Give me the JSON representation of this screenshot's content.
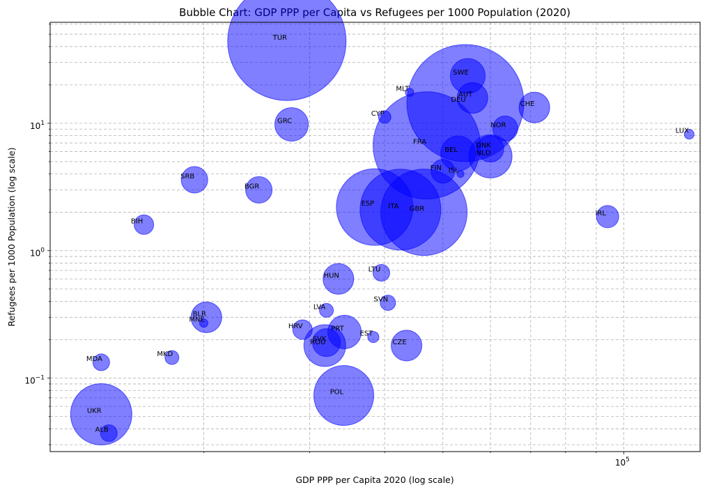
{
  "chart_data": {
    "type": "scatter",
    "variant": "bubble",
    "title": "Bubble Chart: GDP PPP per Capita vs Refugees per 1000 Population (2020)",
    "xlabel": "GDP PPP per Capita 2020 (log scale)",
    "ylabel": "Refugees per 1000 Population (log scale)",
    "xscale": "log",
    "yscale": "log",
    "xlim": [
      11100,
      134000
    ],
    "ylim": [
      0.0265,
      62
    ],
    "xticks": [
      {
        "value": 100000,
        "label": "10^5"
      }
    ],
    "yticks": [
      {
        "value": 0.1,
        "label": "10^-1"
      },
      {
        "value": 1,
        "label": "10^0"
      },
      {
        "value": 10,
        "label": "10^1"
      }
    ],
    "grid": true,
    "bubble_color": "#0000ff",
    "bubble_alpha": 0.5,
    "points": [
      {
        "label": "TUR",
        "x": 27500,
        "y": 44,
        "size": 85
      },
      {
        "label": "SWE",
        "x": 55000,
        "y": 23.5,
        "size": 25
      },
      {
        "label": "MLT",
        "x": 44000,
        "y": 17.5,
        "size": 6
      },
      {
        "label": "AUT",
        "x": 56000,
        "y": 15.8,
        "size": 22
      },
      {
        "label": "DEU",
        "x": 54500,
        "y": 14.4,
        "size": 84
      },
      {
        "label": "CHE",
        "x": 71000,
        "y": 13.3,
        "size": 22
      },
      {
        "label": "CYP",
        "x": 40000,
        "y": 11.2,
        "size": 9
      },
      {
        "label": "GRC",
        "x": 28000,
        "y": 9.8,
        "size": 24
      },
      {
        "label": "NOR",
        "x": 63500,
        "y": 9.1,
        "size": 18
      },
      {
        "label": "LUX",
        "x": 128500,
        "y": 8.2,
        "size": 7
      },
      {
        "label": "FRA",
        "x": 47000,
        "y": 6.7,
        "size": 77
      },
      {
        "label": "DNK",
        "x": 60000,
        "y": 6.3,
        "size": 19
      },
      {
        "label": "BEL",
        "x": 53000,
        "y": 5.8,
        "size": 25
      },
      {
        "label": "NLD",
        "x": 60000,
        "y": 5.5,
        "size": 31
      },
      {
        "label": "FIN",
        "x": 50000,
        "y": 4.2,
        "size": 17
      },
      {
        "label": "ISL",
        "x": 53500,
        "y": 4.0,
        "size": 5
      },
      {
        "label": "SRB",
        "x": 19300,
        "y": 3.6,
        "size": 19
      },
      {
        "label": "BGR",
        "x": 24700,
        "y": 3.0,
        "size": 19
      },
      {
        "label": "ESP",
        "x": 38500,
        "y": 2.2,
        "size": 55
      },
      {
        "label": "ITA",
        "x": 42500,
        "y": 2.1,
        "size": 58
      },
      {
        "label": "GBR",
        "x": 46500,
        "y": 2.0,
        "size": 62
      },
      {
        "label": "IRL",
        "x": 94000,
        "y": 1.85,
        "size": 16
      },
      {
        "label": "BIH",
        "x": 15900,
        "y": 1.6,
        "size": 14
      },
      {
        "label": "LTU",
        "x": 39500,
        "y": 0.67,
        "size": 12
      },
      {
        "label": "HUN",
        "x": 33500,
        "y": 0.6,
        "size": 22
      },
      {
        "label": "SVN",
        "x": 40500,
        "y": 0.39,
        "size": 11
      },
      {
        "label": "LVA",
        "x": 32000,
        "y": 0.34,
        "size": 10
      },
      {
        "label": "BLR",
        "x": 20200,
        "y": 0.3,
        "size": 22
      },
      {
        "label": "MNE",
        "x": 20000,
        "y": 0.27,
        "size": 6
      },
      {
        "label": "HRV",
        "x": 29200,
        "y": 0.24,
        "size": 14
      },
      {
        "label": "PRT",
        "x": 34300,
        "y": 0.23,
        "size": 24
      },
      {
        "label": "EST",
        "x": 38300,
        "y": 0.21,
        "size": 8
      },
      {
        "label": "SVK",
        "x": 32000,
        "y": 0.19,
        "size": 20
      },
      {
        "label": "ROU",
        "x": 31800,
        "y": 0.18,
        "size": 30
      },
      {
        "label": "CZE",
        "x": 43500,
        "y": 0.18,
        "size": 22
      },
      {
        "label": "MKD",
        "x": 17700,
        "y": 0.145,
        "size": 10
      },
      {
        "label": "MDA",
        "x": 13500,
        "y": 0.133,
        "size": 12
      },
      {
        "label": "POL",
        "x": 34200,
        "y": 0.073,
        "size": 43
      },
      {
        "label": "UKR",
        "x": 13500,
        "y": 0.052,
        "size": 44
      },
      {
        "label": "ALB",
        "x": 13900,
        "y": 0.037,
        "size": 12
      }
    ]
  }
}
